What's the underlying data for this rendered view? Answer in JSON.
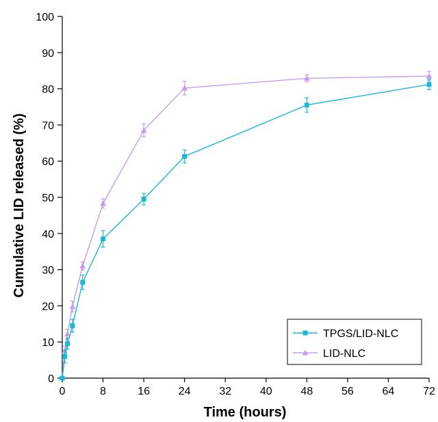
{
  "chart_data": {
    "type": "line",
    "title": "",
    "xlabel": "Time (hours)",
    "ylabel": "Cumulative LID released (%)",
    "xlim": [
      0,
      72
    ],
    "ylim": [
      0,
      100
    ],
    "xticks": [
      0,
      8,
      16,
      24,
      32,
      40,
      48,
      56,
      64,
      72
    ],
    "yticks": [
      0,
      10,
      20,
      30,
      40,
      50,
      60,
      70,
      80,
      90,
      100
    ],
    "grid": false,
    "legend_position": "bottom-right",
    "series": [
      {
        "name": "TPGS/LID-NLC",
        "color": "#1ab8d6",
        "marker": "square",
        "x": [
          0,
          0.5,
          1,
          2,
          4,
          8,
          16,
          24,
          48,
          72
        ],
        "y": [
          0,
          6,
          9.5,
          14.5,
          26.5,
          38.5,
          49.5,
          61.3,
          75.5,
          81.2
        ],
        "error": [
          0.5,
          1.8,
          1.5,
          1.8,
          2,
          2.3,
          1.6,
          1.8,
          2,
          1.4
        ]
      },
      {
        "name": "LID-NLC",
        "color": "#c79cf0",
        "marker": "triangle",
        "x": [
          0,
          0.5,
          1,
          2,
          4,
          8,
          16,
          24,
          48,
          72
        ],
        "y": [
          0,
          7.5,
          12.2,
          19.8,
          31,
          48.3,
          68.5,
          80.2,
          82.9,
          83.5
        ],
        "error": [
          0.5,
          1.2,
          1.3,
          1.5,
          1.1,
          1.3,
          1.8,
          1.9,
          1,
          1.3
        ]
      }
    ]
  }
}
